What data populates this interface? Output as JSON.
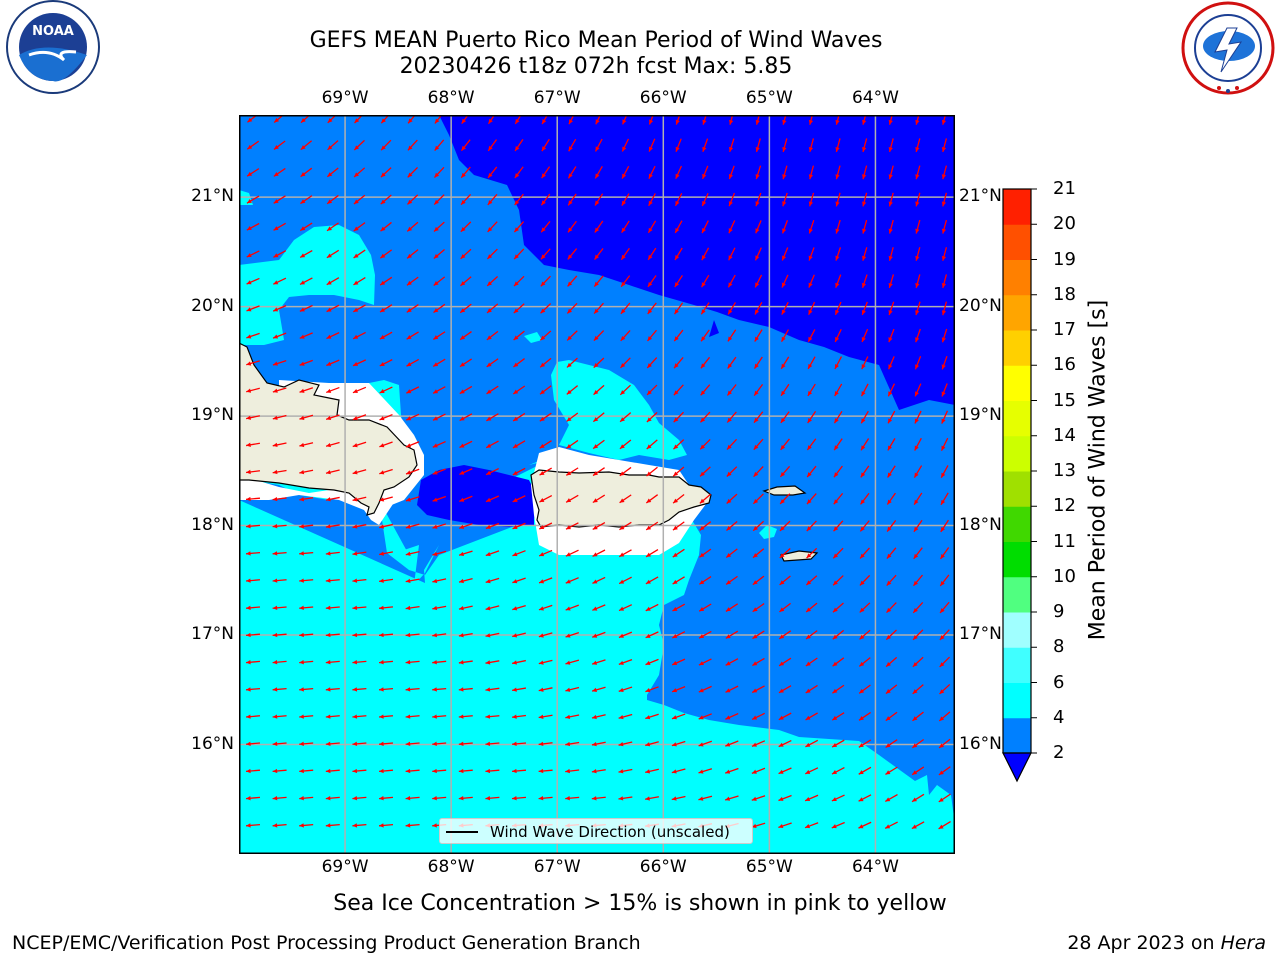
{
  "header": {
    "title_line1": "GEFS MEAN Puerto Rico Mean Period of Wind Waves",
    "title_line2": "20230426 t18z 072h fcst   Max: 5.85"
  },
  "logos": {
    "left": {
      "name": "noaa-logo",
      "text": "NOAA",
      "ring_text": "NATIONAL OCEANIC AND ATMOSPHERIC ADMINISTRATION · U.S. DEPARTMENT OF COMMERCE"
    },
    "right": {
      "name": "nws-logo",
      "ring_text": "NATIONAL WEATHER SERVICE"
    }
  },
  "map": {
    "lon_labels": [
      "69°W",
      "68°W",
      "67°W",
      "66°W",
      "65°W",
      "64°W"
    ],
    "lat_labels": [
      "21°N",
      "20°N",
      "19°N",
      "18°N",
      "17°N",
      "16°N"
    ],
    "lon_range": [
      -70,
      -63.25
    ],
    "lat_range": [
      15.0,
      21.75
    ],
    "legend_label": "Wind Wave Direction (unscaled)",
    "colors": {
      "land": "#eeeedd",
      "ice_free_zone": "#ffffff",
      "period_2_4": "#0080ff",
      "period_4_6": "#00ffff",
      "period_lt_2": "#0000ff",
      "arrow": "#ff0000",
      "grid": "#b0b0b0"
    }
  },
  "colorbar": {
    "label": "Mean Period of Wind Waves [s]",
    "ticks": [
      "2",
      "4",
      "6",
      "8",
      "9",
      "10",
      "11",
      "12",
      "13",
      "14",
      "15",
      "16",
      "17",
      "18",
      "19",
      "20",
      "21"
    ],
    "colors": [
      "#0080ff",
      "#00ffff",
      "#40ffff",
      "#a0ffff",
      "#50ff80",
      "#00dd00",
      "#40d800",
      "#a0e000",
      "#ccff00",
      "#e6ff00",
      "#ffff00",
      "#ffd000",
      "#ffa500",
      "#ff8000",
      "#ff5000",
      "#ff2000",
      "#ff0000"
    ],
    "extend_color": "#0000ff"
  },
  "notes": {
    "sea_ice": "Sea Ice Concentration > 15% is shown in pink to yellow",
    "branch": "NCEP/EMC/Verification Post Processing Product Generation Branch",
    "date": "28 Apr 2023 on ",
    "host": "Hera"
  }
}
